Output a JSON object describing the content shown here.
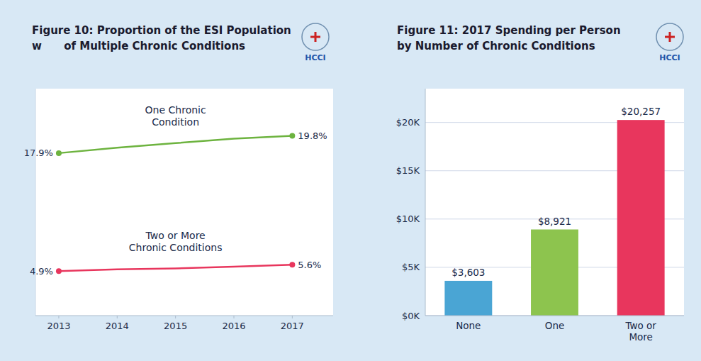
{
  "chart_data": [
    {
      "type": "line",
      "title": "Figure 10: Proportion of the ESI Population\nw      of Multiple Chronic Conditions",
      "x": [
        2013,
        2014,
        2015,
        2016,
        2017
      ],
      "series": [
        {
          "name": "One Chronic\nCondition",
          "color": "#6db33f",
          "marker": "circle",
          "values": [
            17.9,
            18.5,
            19.0,
            19.5,
            19.8
          ],
          "value_labels": [
            "17.9%",
            null,
            null,
            null,
            "19.8%"
          ]
        },
        {
          "name": "Two or More\nChronic Conditions",
          "color": "#e8365d",
          "marker": "circle",
          "values": [
            4.9,
            5.1,
            5.2,
            5.4,
            5.6
          ],
          "value_labels": [
            "4.9%",
            null,
            null,
            null,
            "5.6%"
          ]
        }
      ],
      "xlim": [
        2012.6,
        2017.7
      ],
      "xticks": [
        2013,
        2014,
        2015,
        2016,
        2017
      ],
      "ylim": [
        0,
        25
      ],
      "tick_labels": "x",
      "data_labels": true,
      "annotations": [
        "HCCI"
      ]
    },
    {
      "type": "bar",
      "title": "Figure 11: 2017 Spending per Person\nby Number of Chronic Conditions",
      "categories": [
        "None",
        "One",
        "Two or\nMore"
      ],
      "values": [
        3603,
        8921,
        20257
      ],
      "value_labels": [
        "$3,603",
        "$8,921",
        "$20,257"
      ],
      "colors": [
        "#4aa5d4",
        "#8dc44e",
        "#e8365d"
      ],
      "ylim": [
        0,
        23500
      ],
      "yticks": [
        {
          "value": 0,
          "label": "$0K"
        },
        {
          "value": 5000,
          "label": "$5K"
        },
        {
          "value": 10000,
          "label": "$10K"
        },
        {
          "value": 15000,
          "label": "$15K"
        },
        {
          "value": 20000,
          "label": "$20K"
        }
      ],
      "grid": true,
      "data_labels": true,
      "annotations": [
        "HCCI"
      ]
    }
  ]
}
